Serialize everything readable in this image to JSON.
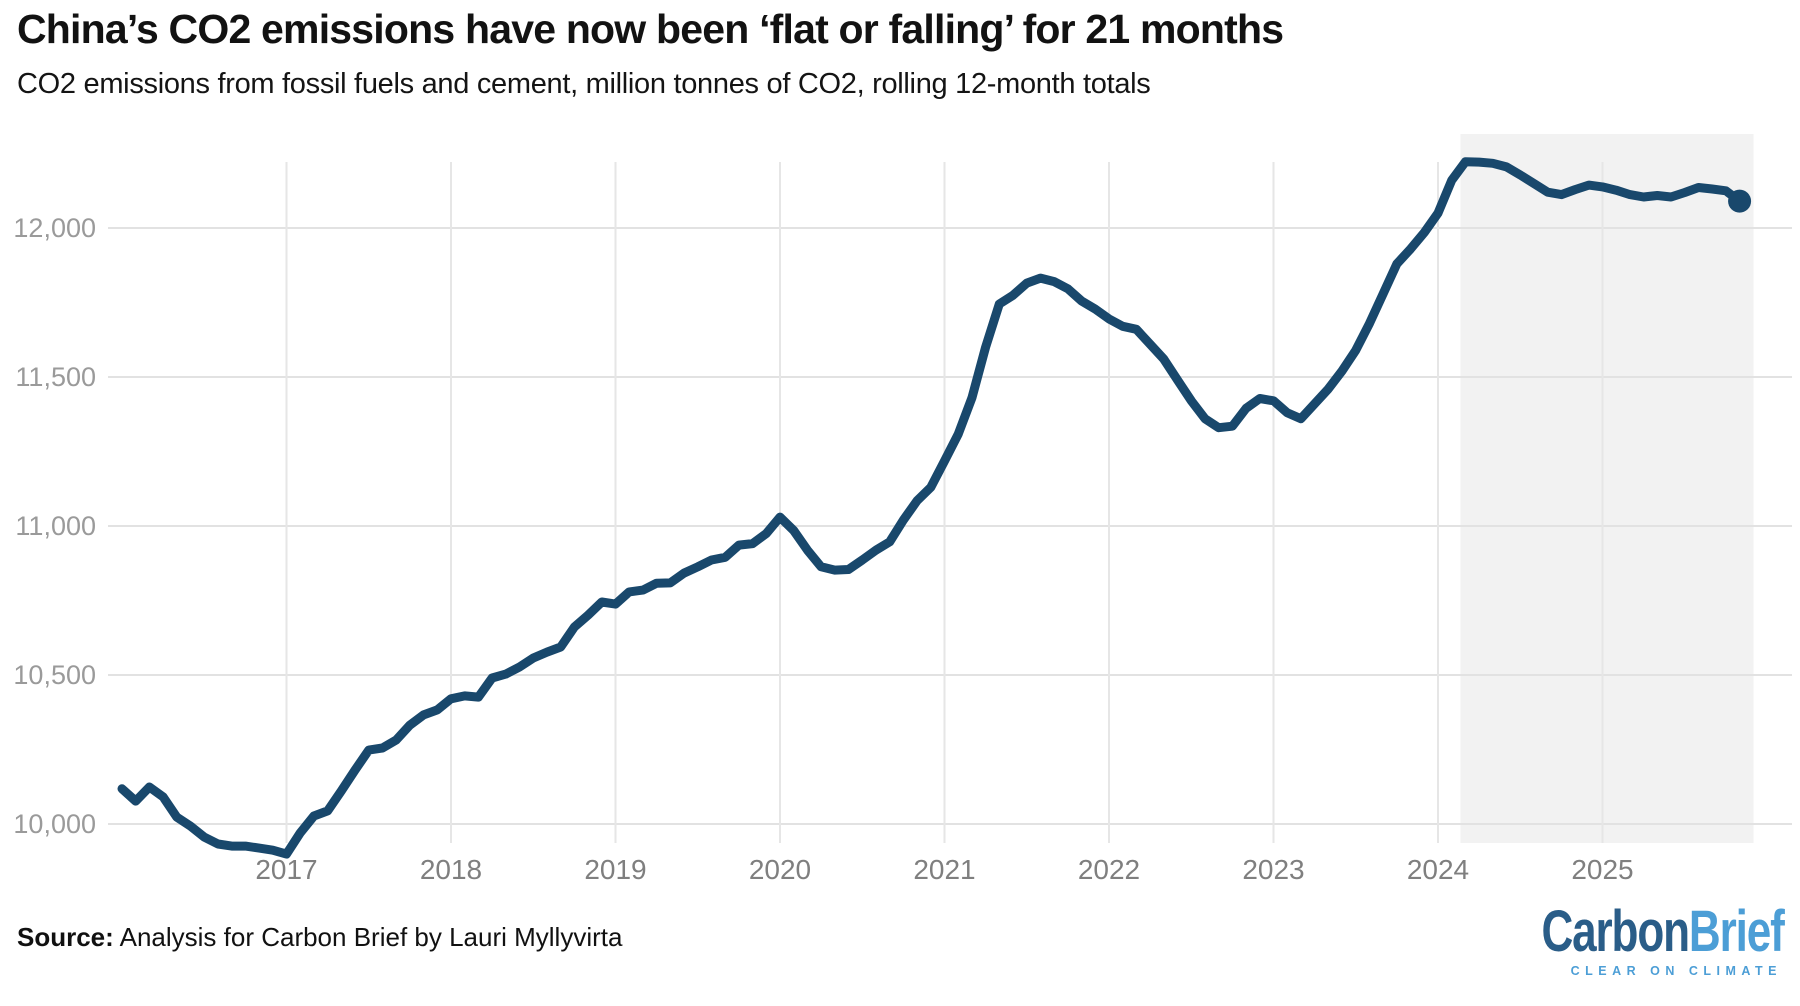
{
  "header": {
    "title": "China’s CO2 emissions have now been ‘flat or falling’ for 21 months",
    "subtitle": "CO2 emissions from fossil fuels and cement, million tonnes of CO2, rolling 12-month totals"
  },
  "footer": {
    "source_label": "Source:",
    "source_text": " Analysis for Carbon Brief by Lauri Myllyvirta"
  },
  "logo": {
    "part1": "Carbon",
    "part2": "Brief",
    "tagline": "CLEAR ON CLIMATE"
  },
  "colors": {
    "line": "#19486c",
    "highlight_band": "#f2f2f2",
    "grid_horizontal": "#e2e2e2",
    "grid_vertical": "#e6e6e6",
    "y_tick_text": "#9a9a9a",
    "x_tick_text": "#7f7f7f",
    "logo_dark_blue": "#2a5d88",
    "logo_light_blue": "#4c9ed6"
  },
  "chart_data": {
    "type": "line",
    "title": "China’s CO2 emissions have now been ‘flat or falling’ for 21 months",
    "subtitle": "CO2 emissions from fossil fuels and cement, million tonnes of CO2, rolling 12-month totals",
    "unit": "million tonnes of CO2 (rolling 12-month totals)",
    "frequency": "monthly",
    "x_start": "2016-01",
    "x_end": "2025-11",
    "values": [
      10118,
      10077,
      10124,
      10091,
      10023,
      9993,
      9956,
      9933,
      9926,
      9926,
      9919,
      9912,
      9899,
      9970,
      10027,
      10044,
      10111,
      10181,
      10248,
      10255,
      10282,
      10332,
      10366,
      10383,
      10420,
      10430,
      10426,
      10490,
      10503,
      10527,
      10557,
      10577,
      10594,
      10661,
      10701,
      10745,
      10738,
      10779,
      10785,
      10808,
      10809,
      10842,
      10863,
      10886,
      10895,
      10936,
      10941,
      10975,
      11030,
      10985,
      10919,
      10863,
      10852,
      10854,
      10886,
      10919,
      10947,
      11020,
      11085,
      11130,
      11218,
      11308,
      11430,
      11600,
      11745,
      11774,
      11815,
      11832,
      11820,
      11796,
      11755,
      11728,
      11695,
      11670,
      11660,
      11610,
      11560,
      11490,
      11420,
      11360,
      11330,
      11335,
      11395,
      11428,
      11420,
      11380,
      11360,
      11410,
      11460,
      11520,
      11590,
      11680,
      11780,
      11880,
      11930,
      11985,
      12050,
      12160,
      12222,
      12221,
      12217,
      12205,
      12178,
      12149,
      12120,
      12112,
      12129,
      12144,
      12138,
      12127,
      12112,
      12104,
      12109,
      12104,
      12119,
      12136,
      12131,
      12125,
      12090
    ],
    "y_ticks": [
      10000,
      10500,
      11000,
      11500,
      12000
    ],
    "y_tick_labels": [
      "10,000",
      "10,500",
      "11,000",
      "11,500",
      "12,000"
    ],
    "x_ticks": [
      2017,
      2018,
      2019,
      2020,
      2021,
      2022,
      2023,
      2024,
      2025
    ],
    "ylim": [
      9900,
      12230
    ],
    "grid": true,
    "legend": false,
    "highlight_band": {
      "from": "2024-03",
      "to": "2025-11"
    },
    "end_marker": {
      "x": "2025-11",
      "value": 12090
    }
  }
}
